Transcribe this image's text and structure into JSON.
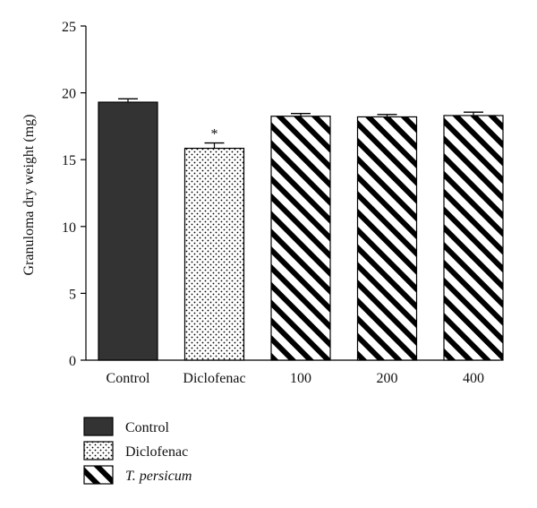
{
  "chart_data": {
    "type": "bar",
    "ylabel": "Granuloma dry weight (mg)",
    "xlabel": "",
    "title": "",
    "ylim": [
      0,
      25
    ],
    "yticks": [
      0,
      5,
      10,
      15,
      20,
      25
    ],
    "categories": [
      "Control",
      "Diclofenac",
      "100",
      "200",
      "400"
    ],
    "values": [
      19.3,
      15.85,
      18.25,
      18.2,
      18.3
    ],
    "errors": [
      0.25,
      0.4,
      0.2,
      0.18,
      0.25
    ],
    "annotations": [
      "",
      "*",
      "",
      "",
      ""
    ],
    "bar_styles": [
      "solid",
      "dots",
      "stripes",
      "stripes",
      "stripes"
    ],
    "legend": {
      "placement": "bottom-left",
      "entries": [
        {
          "label": "Control",
          "style": "solid",
          "italic": false
        },
        {
          "label": "Diclofenac",
          "style": "dots",
          "italic": false
        },
        {
          "label": "T. persicum",
          "style": "stripes",
          "italic": true
        }
      ]
    },
    "colors": {
      "solid": "#333333",
      "ink": "#000000",
      "background": "#ffffff"
    },
    "grid": false
  }
}
